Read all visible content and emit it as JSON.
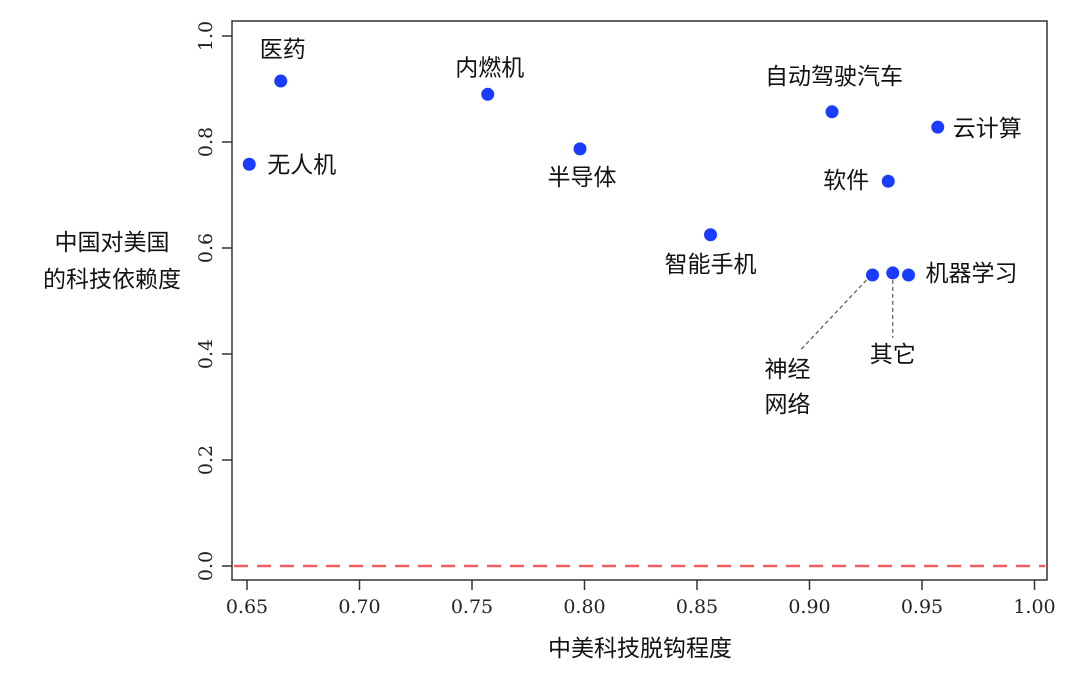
{
  "chart_data": {
    "type": "scatter",
    "title": "",
    "xlabel": "中美科技脱钩程度",
    "ylabel_lines": [
      "中国对美国",
      "的科技依赖度"
    ],
    "xlim": [
      0.64,
      1.01
    ],
    "ylim": [
      -0.03,
      1.03
    ],
    "xticks": [
      "0.65",
      "0.70",
      "0.75",
      "0.80",
      "0.85",
      "0.90",
      "0.95",
      "1.00"
    ],
    "yticks": [
      "0.0",
      "0.2",
      "0.4",
      "0.6",
      "0.8",
      "1.0"
    ],
    "grid": false,
    "point_color": "#1a3cff",
    "reference_line": {
      "y": 0.0,
      "style": "dashed",
      "color": "#f06060"
    },
    "points": [
      {
        "label": "医药",
        "x": 0.665,
        "y": 0.915
      },
      {
        "label": "无人机",
        "x": 0.651,
        "y": 0.758
      },
      {
        "label": "内燃机",
        "x": 0.757,
        "y": 0.89
      },
      {
        "label": "半导体",
        "x": 0.798,
        "y": 0.787
      },
      {
        "label": "智能手机",
        "x": 0.856,
        "y": 0.625
      },
      {
        "label": "自动驾驶汽车",
        "x": 0.91,
        "y": 0.857
      },
      {
        "label": "云计算",
        "x": 0.957,
        "y": 0.828
      },
      {
        "label": "软件",
        "x": 0.935,
        "y": 0.726
      },
      {
        "label": "神经网络",
        "label_lines": [
          "神经",
          "网络"
        ],
        "x": 0.928,
        "y": 0.549
      },
      {
        "label": "其它",
        "x": 0.937,
        "y": 0.553
      },
      {
        "label": "机器学习",
        "x": 0.944,
        "y": 0.549
      }
    ]
  }
}
